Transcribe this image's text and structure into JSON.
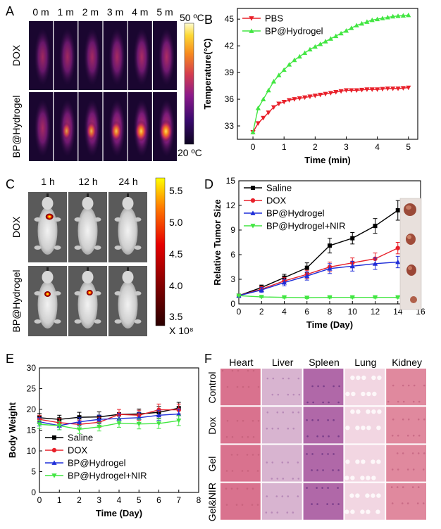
{
  "panel_labels": [
    "A",
    "B",
    "C",
    "D",
    "E",
    "F"
  ],
  "panel_a": {
    "times": [
      "0 m",
      "1 m",
      "2 m",
      "3 m",
      "4 m",
      "5 m"
    ],
    "rows": [
      "DOX",
      "BP@Hydrogel"
    ],
    "scale_max": "50 ºC",
    "scale_min": "20 ºC",
    "colormap": [
      "#0d0520",
      "#3a0a6e",
      "#8a1a8a",
      "#d43d4f",
      "#f78a1e",
      "#fdd835",
      "#fffbd0"
    ]
  },
  "panel_c": {
    "times": [
      "1 h",
      "12 h",
      "24 h"
    ],
    "rows": [
      "DOX",
      "BP@Hydrogel"
    ],
    "scale_ticks": [
      "5.5",
      "5.0",
      "4.5",
      "4.0",
      "3.5"
    ],
    "scale_unit": "X 10⁸",
    "colormap": [
      "#2a0000",
      "#8b0000",
      "#e60000",
      "#ff7a00",
      "#ffff00"
    ]
  },
  "panel_f": {
    "organs": [
      "Heart",
      "Liver",
      "Spleen",
      "Lung",
      "Kidney"
    ],
    "groups": [
      "Control",
      "Dox",
      "Gel",
      "Gel&NIR"
    ]
  },
  "chart_data": [
    {
      "panel": "B",
      "type": "line",
      "xlabel": "Time (min)",
      "ylabel": "Temperature(°C)",
      "xlim": [
        -0.5,
        5.3
      ],
      "ylim": [
        31.5,
        46.2
      ],
      "xticks": [
        0,
        1,
        2,
        3,
        4,
        5
      ],
      "yticks": [
        33,
        36,
        39,
        42,
        45
      ],
      "legend": "top-left",
      "x": [
        0,
        0.1667,
        0.3333,
        0.5,
        0.6667,
        0.8333,
        1.0,
        1.1667,
        1.3333,
        1.5,
        1.6667,
        1.8333,
        2.0,
        2.1667,
        2.3333,
        2.5,
        2.6667,
        2.8333,
        3.0,
        3.1667,
        3.3333,
        3.5,
        3.6667,
        3.8333,
        4.0,
        4.1667,
        4.3333,
        4.5,
        4.6667,
        4.8333,
        5.0
      ],
      "series": [
        {
          "name": "PBS",
          "color": "#e8202a",
          "marker": "triangle-down",
          "values": [
            32.3,
            33.3,
            33.9,
            34.5,
            35.1,
            35.5,
            35.7,
            35.9,
            36.0,
            36.1,
            36.2,
            36.3,
            36.4,
            36.5,
            36.6,
            36.7,
            36.8,
            36.9,
            37.0,
            37.0,
            37.0,
            37.05,
            37.1,
            37.1,
            37.1,
            37.15,
            37.2,
            37.2,
            37.2,
            37.25,
            37.3
          ]
        },
        {
          "name": "BP@Hydrogel",
          "color": "#42e642",
          "marker": "triangle-up",
          "values": [
            32.3,
            35.0,
            36.0,
            37.0,
            38.0,
            38.7,
            39.3,
            39.9,
            40.4,
            40.8,
            41.2,
            41.6,
            41.9,
            42.2,
            42.5,
            42.8,
            43.1,
            43.4,
            43.7,
            44.0,
            44.3,
            44.5,
            44.7,
            44.9,
            45.0,
            45.1,
            45.2,
            45.3,
            45.35,
            45.4,
            45.45
          ]
        }
      ]
    },
    {
      "panel": "D",
      "type": "line",
      "xlabel": "Time (Day)",
      "ylabel": "Relative Tumor Size",
      "xlim": [
        0,
        16
      ],
      "ylim": [
        0,
        15
      ],
      "xticks": [
        0,
        2,
        4,
        6,
        8,
        10,
        12,
        14,
        16
      ],
      "yticks": [
        0,
        3,
        6,
        9,
        12,
        15
      ],
      "legend": "top-left",
      "x": [
        0,
        2,
        4,
        6,
        8,
        10,
        12,
        14
      ],
      "series": [
        {
          "name": "Saline",
          "color": "#000000",
          "marker": "square",
          "values": [
            1.0,
            2.0,
            3.2,
            4.4,
            7.1,
            8.0,
            9.5,
            11.4
          ],
          "errors": [
            0.1,
            0.3,
            0.4,
            0.6,
            0.9,
            0.7,
            0.9,
            1.2
          ]
        },
        {
          "name": "DOX",
          "color": "#e8202a",
          "marker": "circle",
          "values": [
            1.0,
            1.8,
            2.8,
            3.6,
            4.5,
            5.0,
            5.5,
            6.8
          ],
          "errors": [
            0.1,
            0.3,
            0.4,
            0.5,
            0.6,
            0.6,
            0.7,
            0.7
          ]
        },
        {
          "name": "BP@Hydrogel",
          "color": "#1f2ed8",
          "marker": "triangle-up",
          "values": [
            1.0,
            1.7,
            2.6,
            3.4,
            4.3,
            4.6,
            4.9,
            5.1
          ],
          "errors": [
            0.1,
            0.3,
            0.4,
            0.5,
            0.6,
            0.6,
            0.7,
            0.7
          ]
        },
        {
          "name": "BP@Hydrogel+NIR",
          "color": "#42e642",
          "marker": "triangle-down",
          "values": [
            1.0,
            0.85,
            0.8,
            0.75,
            0.8,
            0.8,
            0.8,
            0.8
          ],
          "errors": [
            0.05,
            0.1,
            0.1,
            0.1,
            0.1,
            0.1,
            0.1,
            0.1
          ]
        }
      ]
    },
    {
      "panel": "E",
      "type": "line",
      "xlabel": "Time (Day)",
      "ylabel": "Body Weight",
      "xlim": [
        0,
        8
      ],
      "ylim": [
        0,
        30
      ],
      "xticks": [
        0,
        1,
        2,
        3,
        4,
        5,
        6,
        7,
        8
      ],
      "yticks": [
        0,
        5,
        10,
        15,
        20,
        25,
        30
      ],
      "legend": "bottom-left",
      "x": [
        0,
        1,
        2,
        3,
        4,
        5,
        6,
        7
      ],
      "series": [
        {
          "name": "Saline",
          "color": "#000000",
          "marker": "square",
          "values": [
            18.0,
            17.6,
            18.1,
            18.2,
            18.8,
            18.9,
            19.3,
            20.3
          ],
          "errors": [
            1.0,
            1.0,
            1.2,
            1.2,
            1.2,
            1.2,
            1.4,
            1.4
          ]
        },
        {
          "name": "DOX",
          "color": "#e8202a",
          "marker": "circle",
          "values": [
            17.6,
            16.8,
            16.4,
            16.9,
            18.8,
            18.6,
            19.9,
            19.9
          ],
          "errors": [
            1.0,
            1.0,
            1.0,
            1.2,
            1.2,
            1.2,
            1.4,
            1.4
          ]
        },
        {
          "name": "BP@Hydrogel",
          "color": "#1f2ed8",
          "marker": "triangle-up",
          "values": [
            17.0,
            16.1,
            17.0,
            17.6,
            17.8,
            18.0,
            18.6,
            18.9
          ],
          "errors": [
            1.0,
            1.0,
            1.0,
            1.0,
            1.2,
            1.2,
            1.2,
            1.2
          ]
        },
        {
          "name": "BP@Hydrogel+NIR",
          "color": "#42e642",
          "marker": "triangle-down",
          "values": [
            16.4,
            16.1,
            15.2,
            15.8,
            16.7,
            16.5,
            16.6,
            17.3
          ],
          "errors": [
            1.0,
            1.0,
            1.0,
            1.0,
            1.0,
            1.2,
            1.2,
            1.2
          ]
        }
      ]
    }
  ]
}
